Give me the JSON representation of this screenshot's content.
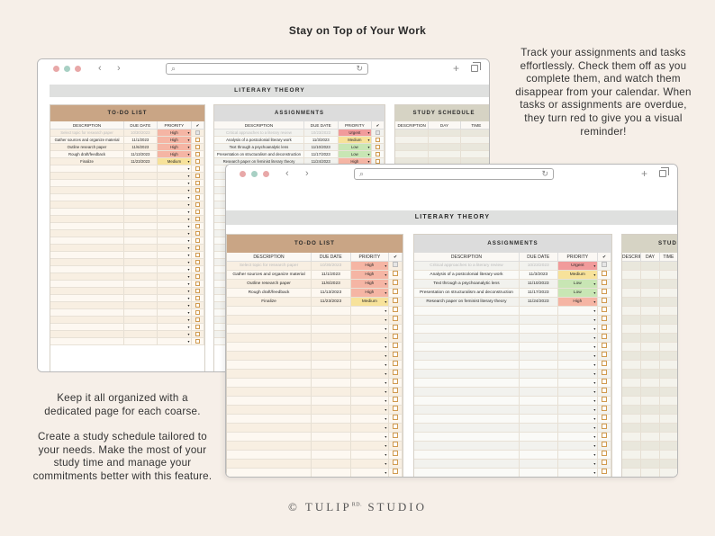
{
  "headline": "Stay on Top of Your Work",
  "blurb_right": "Track your assignments and tasks effortlessly. Check them off as you complete them, and watch them disappear from your calendar. When tasks or assignments are overdue, they turn red to give you a visual reminder!",
  "blurb_left_1": "Keep it all organized with a dedicated page for each coarse.",
  "blurb_left_2": "Create a study schedule tailored to your needs. Make the most of your study time and manage your commitments better with this feature.",
  "brand": {
    "pre": "© TULIP",
    "sup": "RD.",
    "post": " STUDIO"
  },
  "colors": {
    "todo_header": "#c9a585",
    "urgent": "#f19b9b",
    "high": "#f5b5a4",
    "medium": "#f7e29a",
    "low": "#c8e6b4"
  },
  "sheet": {
    "title": "LITERARY THEORY",
    "todo": {
      "title": "TO-DO LIST",
      "columns": [
        "DESCRIPTION",
        "DUE DATE",
        "PRIORITY",
        "✔"
      ],
      "rows": [
        {
          "description": "Select topic for research paper",
          "due": "10/30/2023",
          "priority": "High",
          "level": "high",
          "done": true
        },
        {
          "description": "Gather sources and organize material",
          "due": "11/1/2023",
          "priority": "High",
          "level": "high",
          "done": false
        },
        {
          "description": "Outline research paper",
          "due": "11/6/2023",
          "priority": "High",
          "level": "high",
          "done": false
        },
        {
          "description": "Rough draft/feedback",
          "due": "11/13/2023",
          "priority": "High",
          "level": "high",
          "done": false
        },
        {
          "description": "Finalize",
          "due": "11/23/2023",
          "priority": "Medium",
          "level": "medium",
          "done": false
        }
      ]
    },
    "assignments": {
      "title": "ASSIGNMENTS",
      "columns": [
        "DESCRIPTION",
        "DUE DATE",
        "PRIORITY",
        "✔"
      ],
      "rows": [
        {
          "description": "Critical approaches to a literary review",
          "due": "10/23/2023",
          "priority": "Urgent",
          "level": "urgent",
          "done": true
        },
        {
          "description": "Analysis of a postcolonial literary work",
          "due": "11/3/2023",
          "priority": "Medium",
          "level": "medium",
          "done": false
        },
        {
          "description": "Text through a psychoanalytic lens",
          "due": "11/10/2023",
          "priority": "Low",
          "level": "low",
          "done": false
        },
        {
          "description": "Presentation on structuralism and deconstruction",
          "due": "11/17/2023",
          "priority": "Low",
          "level": "low",
          "done": false
        },
        {
          "description": "Research paper on feminist literary theory",
          "due": "11/24/2023",
          "priority": "High",
          "level": "high",
          "done": false
        }
      ]
    },
    "study": {
      "title": "STUDY SCHEDULE",
      "title_cut": "STUDY",
      "columns": [
        "DESCRIPTION",
        "DAY",
        "TIME"
      ]
    }
  }
}
